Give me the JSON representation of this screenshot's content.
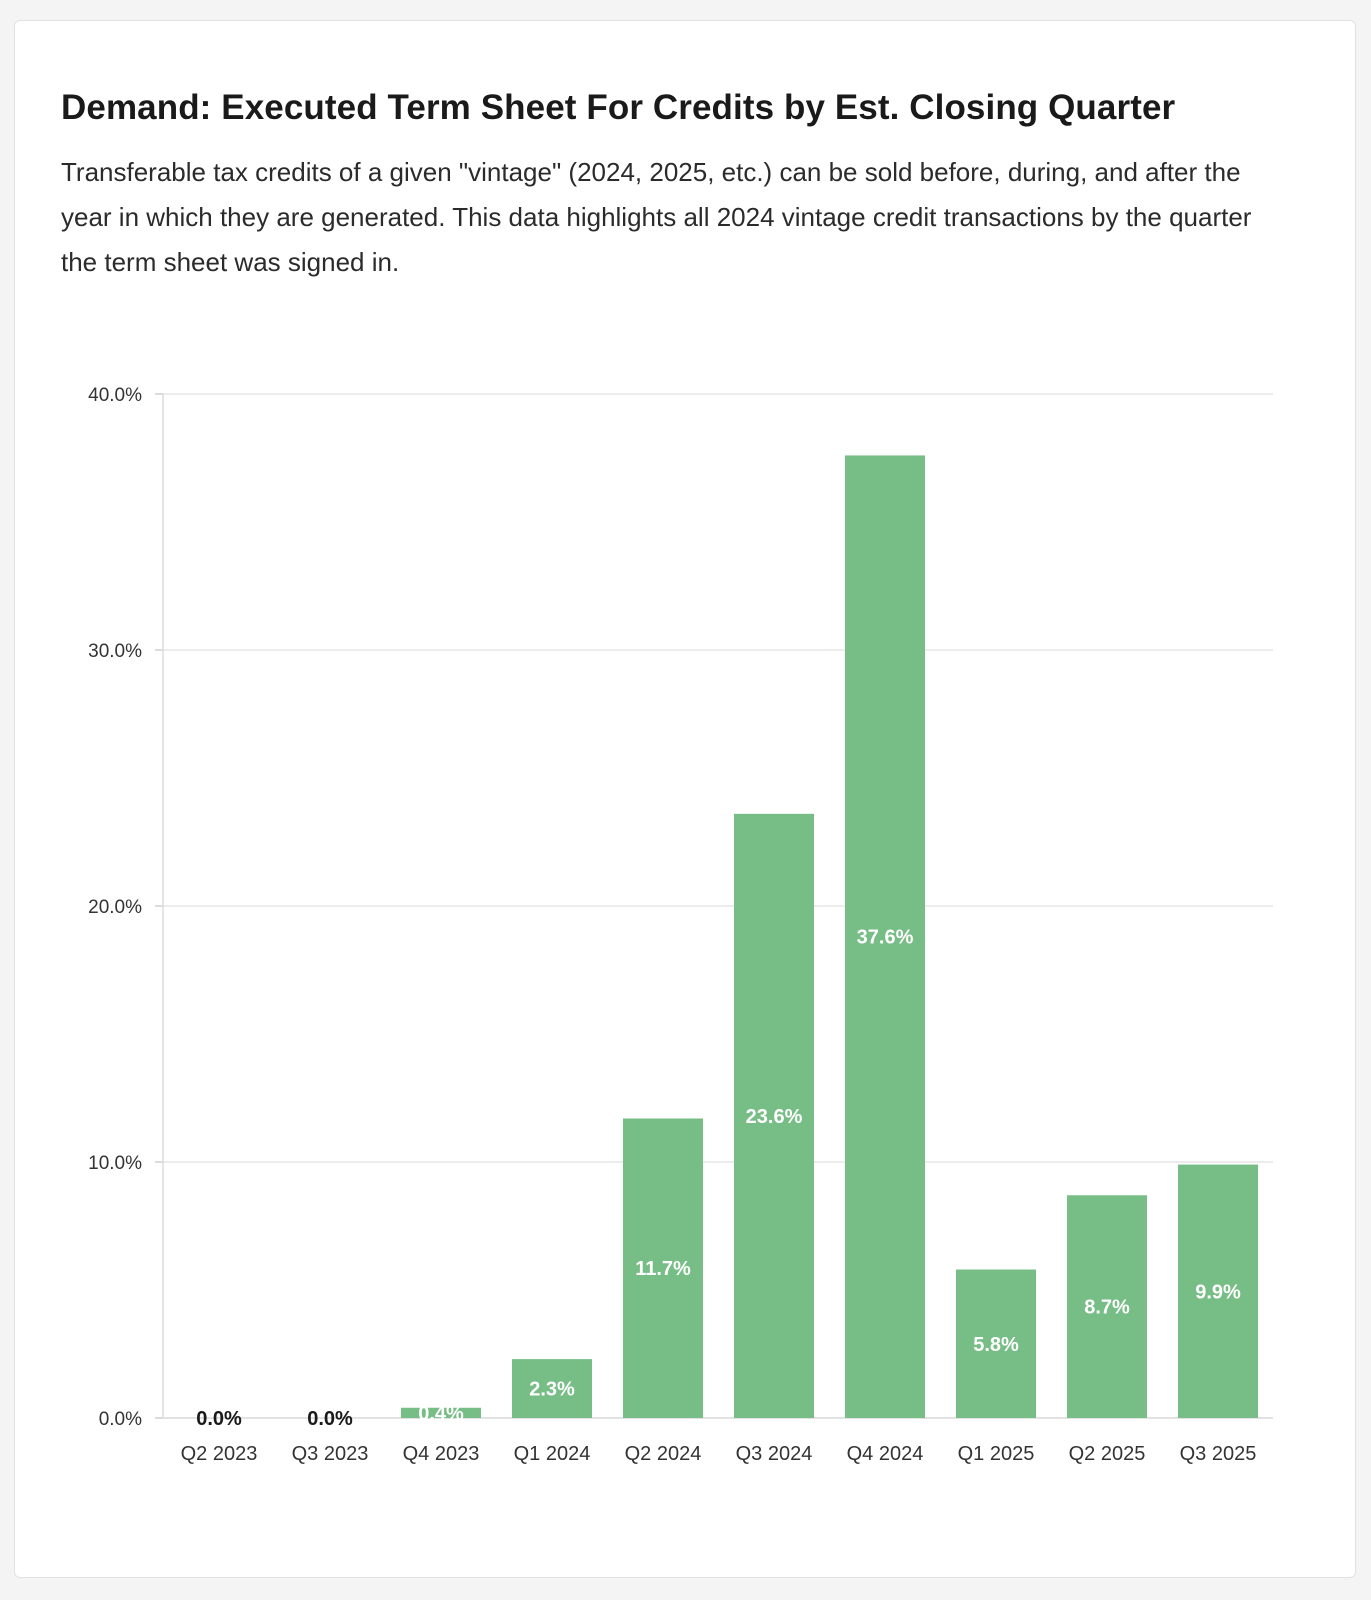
{
  "card": {
    "title": "Demand: Executed Term Sheet For Credits by Est. Closing Quarter",
    "subtitle": "Transferable tax credits of a given \"vintage\" (2024, 2025, etc.) can be sold before, during, and after the year in which they are generated. This data highlights all 2024 vintage credit transactions by the quarter the term sheet was signed in."
  },
  "chart_data": {
    "type": "bar",
    "title": "Demand: Executed Term Sheet For Credits by Est. Closing Quarter",
    "xlabel": "",
    "ylabel": "",
    "categories": [
      "Q2 2023",
      "Q3 2023",
      "Q4 2023",
      "Q1 2024",
      "Q2 2024",
      "Q3 2024",
      "Q4 2024",
      "Q1 2025",
      "Q2 2025",
      "Q3 2025"
    ],
    "values": [
      0.0,
      0.0,
      0.4,
      2.3,
      11.7,
      23.6,
      37.6,
      5.8,
      8.7,
      9.9
    ],
    "data_labels": [
      "0.0%",
      "0.0%",
      "0.4%",
      "2.3%",
      "11.7%",
      "23.6%",
      "37.6%",
      "5.8%",
      "8.7%",
      "9.9%"
    ],
    "ylim": [
      0,
      40
    ],
    "yticks": [
      0,
      10,
      20,
      30,
      40
    ],
    "ytick_labels": [
      "0.0%",
      "10.0%",
      "20.0%",
      "30.0%",
      "40.0%"
    ],
    "grid": true,
    "legend": "none",
    "bar_color": "#77bd86",
    "label_color_inside": "#ffffff",
    "label_color_outside": "#1a1a1a"
  }
}
